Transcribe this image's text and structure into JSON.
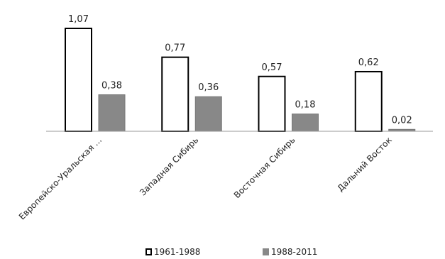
{
  "chart_data": {
    "type": "bar",
    "categories": [
      "Европейско-Уральская ...",
      "Западная Сибирь",
      "Восточная Сибирь",
      "Дальний Восток"
    ],
    "series": [
      {
        "name": "1961-1988",
        "values": [
          1.07,
          0.77,
          0.57,
          0.62
        ],
        "labels": [
          "1,07",
          "0,77",
          "0,57",
          "0,62"
        ]
      },
      {
        "name": "1988-2011",
        "values": [
          0.38,
          0.36,
          0.18,
          0.02
        ],
        "labels": [
          "0,38",
          "0,36",
          "0,18",
          "0,02"
        ]
      }
    ],
    "ylim": [
      0,
      1.07
    ],
    "grid": false,
    "legend_position": "bottom",
    "colors": {
      "series1_fill": "#ffffff",
      "series1_stroke": "#000000",
      "series2_fill": "#888888",
      "axis": "#999999"
    }
  }
}
